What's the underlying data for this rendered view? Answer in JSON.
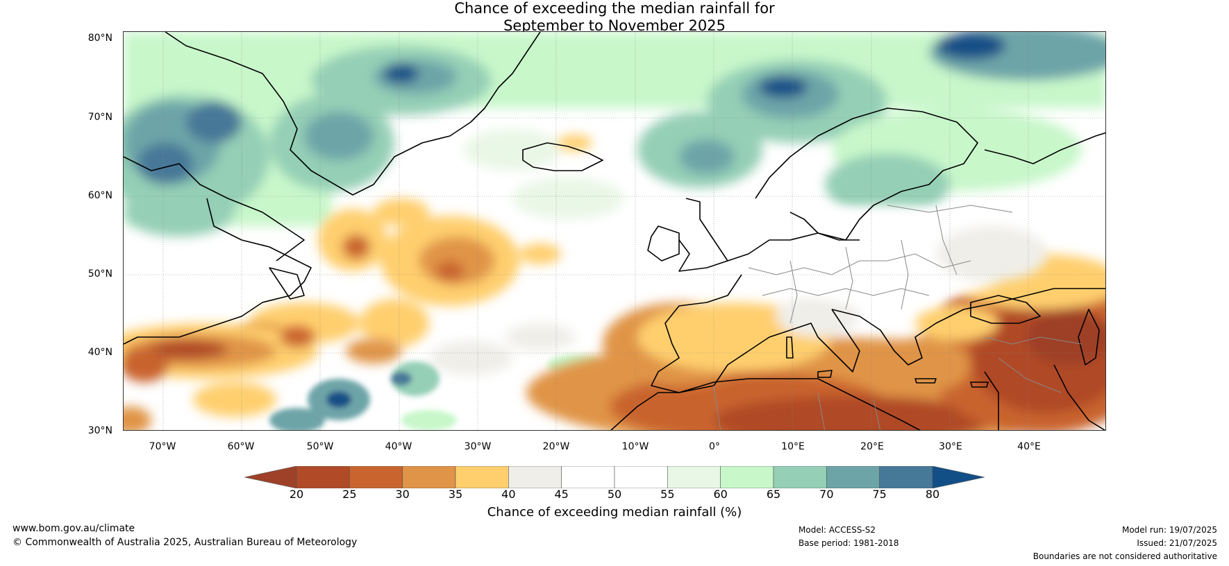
{
  "title_line1": "Chance of exceeding the median rainfall for",
  "title_line2": "September to November 2025",
  "lat_labels": [
    "80°N",
    "70°N",
    "60°N",
    "50°N",
    "40°N",
    "30°N"
  ],
  "lon_labels": [
    "70°W",
    "60°W",
    "50°W",
    "40°W",
    "30°W",
    "20°W",
    "10°W",
    "0°",
    "10°E",
    "20°E",
    "30°E",
    "40°E"
  ],
  "colorbar": {
    "ticks": [
      "20",
      "25",
      "30",
      "35",
      "40",
      "45",
      "50",
      "55",
      "60",
      "65",
      "70",
      "75",
      "80"
    ],
    "colors": [
      "#9e4128",
      "#b04a27",
      "#c9642e",
      "#e09447",
      "#ffcf6e",
      "#efeee9",
      "#ffffff",
      "#ffffff",
      "#e9f7e6",
      "#c8f7ca",
      "#94cfb6",
      "#6da4a8",
      "#467898",
      "#134f87"
    ],
    "label": "Chance of exceeding median rainfall (%)"
  },
  "footer": {
    "url": "www.bom.gov.au/climate",
    "copyright": "© Commonwealth of Australia 2025, Australian Bureau of Meteorology",
    "model": "Model: ACCESS-S2",
    "base_period": "Base period: 1981-2018",
    "model_run": "Model run: 19/07/2025",
    "issued": "Issued: 21/07/2025",
    "disclaimer": "Boundaries are not considered authoritative"
  }
}
